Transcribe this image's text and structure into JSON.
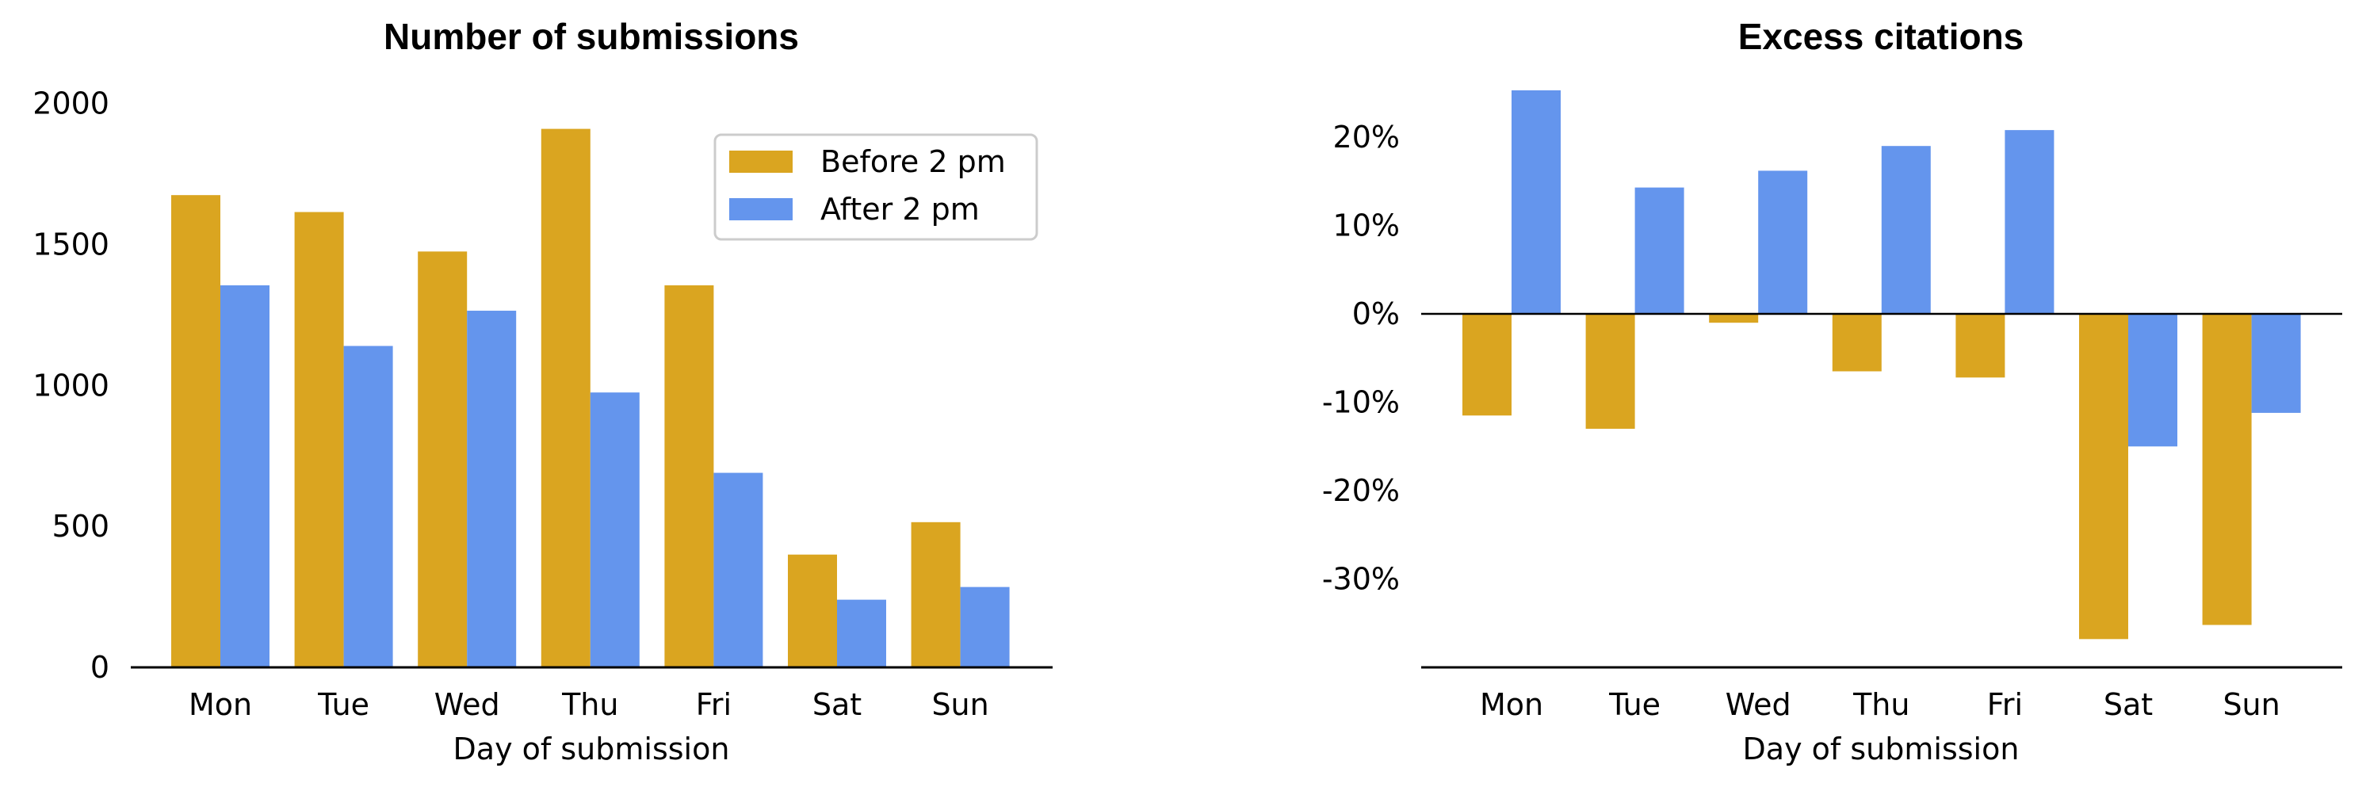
{
  "colors": {
    "before": "#DAA520",
    "after": "#6495ED"
  },
  "chart_data": [
    {
      "type": "bar",
      "title": "Number of submissions",
      "xlabel": "Day of submission",
      "ylabel": "",
      "categories": [
        "Mon",
        "Tue",
        "Wed",
        "Thu",
        "Fri",
        "Sat",
        "Sun"
      ],
      "series": [
        {
          "name": "Before 2 pm",
          "values": [
            1675,
            1615,
            1475,
            1910,
            1355,
            400,
            515
          ]
        },
        {
          "name": "After 2 pm",
          "values": [
            1355,
            1140,
            1265,
            975,
            690,
            240,
            285
          ]
        }
      ],
      "ylim": [
        0,
        2100
      ],
      "yticks": [
        0,
        500,
        1000,
        1500,
        2000
      ],
      "ytick_labels": [
        "0",
        "500",
        "1000",
        "1500",
        "2000"
      ],
      "legend": "top-right",
      "grid": false
    },
    {
      "type": "bar",
      "title": "Excess citations",
      "xlabel": "Day of submission",
      "ylabel": "",
      "categories": [
        "Mon",
        "Tue",
        "Wed",
        "Thu",
        "Fri",
        "Sat",
        "Sun"
      ],
      "series": [
        {
          "name": "Before 2 pm",
          "values": [
            -11.5,
            -13.0,
            -1.0,
            -6.5,
            -7.2,
            -36.8,
            -35.2
          ]
        },
        {
          "name": "After 2 pm",
          "values": [
            25.3,
            14.3,
            16.2,
            19.0,
            20.8,
            -15.0,
            -11.2
          ]
        }
      ],
      "ylim": [
        -40,
        27
      ],
      "yticks": [
        -30,
        -20,
        -10,
        0,
        10,
        20
      ],
      "ytick_labels": [
        "-30%",
        "-20%",
        "-10%",
        "0%",
        "10%",
        "20%"
      ],
      "legend": "none",
      "grid": false
    }
  ]
}
